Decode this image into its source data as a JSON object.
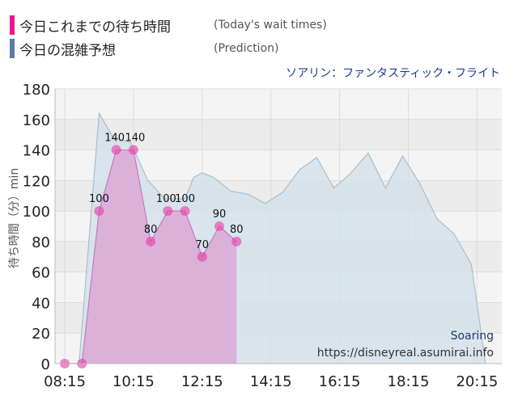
{
  "legend": {
    "actual_label": "今日これまでの待ち時間",
    "actual_sub": "(Today's wait times)",
    "prediction_label": "今日の混雑予想",
    "prediction_sub": "(Prediction)"
  },
  "subtitle": "ソアリン：ファンタスティック・フライト",
  "watermark": {
    "name": "Soaring",
    "url": "https://disneyreal.asumirai.info"
  },
  "colors": {
    "actual": "#e838a8",
    "actual_fill": "#dca8d6",
    "prediction": "#5f7aa6",
    "prediction_fill": "#d3e0ea",
    "prediction_stroke": "#a9bfd0",
    "title_accent": "#1f3a8a"
  },
  "chart_data": {
    "type": "area",
    "ylabel": "待ち時間（分）min",
    "yticks": [
      "0",
      "20",
      "40",
      "60",
      "80",
      "100",
      "120",
      "140",
      "160",
      "180"
    ],
    "xticks": [
      "08:15",
      "10:15",
      "12:15",
      "14:15",
      "16:15",
      "18:15",
      "20:15"
    ],
    "ylim": [
      0,
      180
    ],
    "xlim": [
      "08:15",
      "20:30"
    ],
    "grid": true,
    "series": [
      {
        "kind": "actual",
        "points": [
          {
            "t": "08:15",
            "v": 0
          },
          {
            "t": "08:45",
            "v": 0
          },
          {
            "t": "09:15",
            "v": 100
          },
          {
            "t": "09:45",
            "v": 140
          },
          {
            "t": "10:15",
            "v": 140
          },
          {
            "t": "10:45",
            "v": 80
          },
          {
            "t": "11:15",
            "v": 100
          },
          {
            "t": "11:45",
            "v": 100
          },
          {
            "t": "12:15",
            "v": 70
          },
          {
            "t": "12:45",
            "v": 90
          },
          {
            "t": "13:15",
            "v": 80
          }
        ]
      },
      {
        "kind": "prediction",
        "points": [
          {
            "t": "08:15",
            "v": 0
          },
          {
            "t": "08:40",
            "v": 0
          },
          {
            "t": "09:15",
            "v": 164
          },
          {
            "t": "09:40",
            "v": 148
          },
          {
            "t": "10:10",
            "v": 145
          },
          {
            "t": "10:40",
            "v": 120
          },
          {
            "t": "11:10",
            "v": 108
          },
          {
            "t": "11:45",
            "v": 108
          },
          {
            "t": "12:00",
            "v": 122
          },
          {
            "t": "12:15",
            "v": 125
          },
          {
            "t": "12:35",
            "v": 122
          },
          {
            "t": "13:05",
            "v": 113
          },
          {
            "t": "13:35",
            "v": 111
          },
          {
            "t": "14:05",
            "v": 105
          },
          {
            "t": "14:35",
            "v": 112
          },
          {
            "t": "15:05",
            "v": 127
          },
          {
            "t": "15:35",
            "v": 135
          },
          {
            "t": "16:05",
            "v": 115
          },
          {
            "t": "16:35",
            "v": 125
          },
          {
            "t": "17:05",
            "v": 138
          },
          {
            "t": "17:35",
            "v": 115
          },
          {
            "t": "18:05",
            "v": 136
          },
          {
            "t": "18:35",
            "v": 118
          },
          {
            "t": "19:05",
            "v": 95
          },
          {
            "t": "19:35",
            "v": 85
          },
          {
            "t": "20:05",
            "v": 65
          },
          {
            "t": "20:30",
            "v": 0
          }
        ]
      }
    ],
    "data_labels": [
      "0",
      "0",
      "100",
      "140",
      "140",
      "80",
      "100",
      "100",
      "70",
      "90",
      "80"
    ]
  }
}
